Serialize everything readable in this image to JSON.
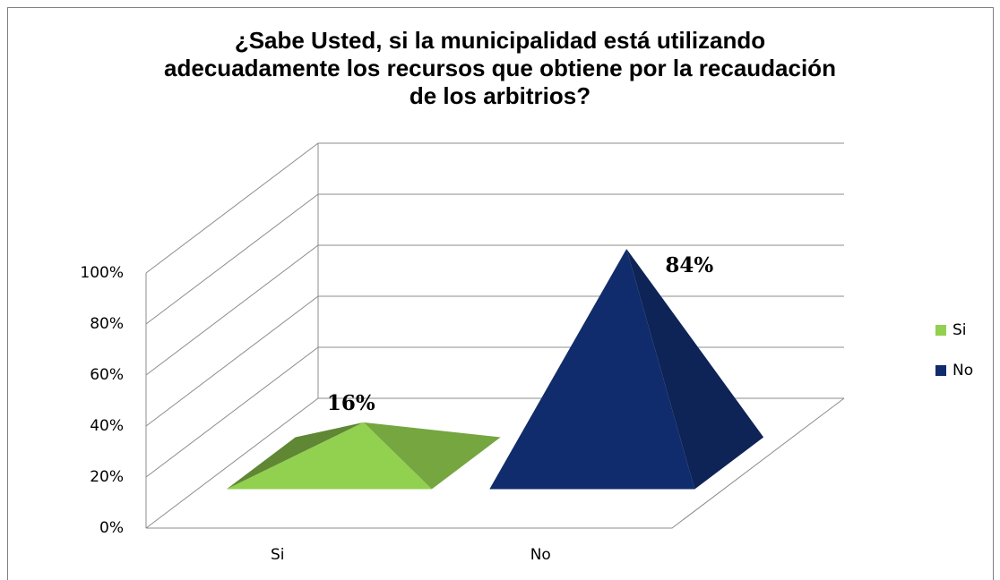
{
  "chart_data": {
    "type": "pyramid",
    "title": "¿Sabe Usted, si la municipalidad está utilizando\nadecuadamente los recursos que obtiene por la recaudación\nde los arbitrios?",
    "categories": [
      "Si",
      "No"
    ],
    "values": [
      16,
      84
    ],
    "value_labels": [
      "16%",
      "84%"
    ],
    "colors": [
      "#92d050",
      "#112c6c"
    ],
    "ylim": [
      0,
      100
    ],
    "yticks": [
      {
        "value": 0,
        "label": "0%"
      },
      {
        "value": 20,
        "label": "20%"
      },
      {
        "value": 40,
        "label": "40%"
      },
      {
        "value": 60,
        "label": "60%"
      },
      {
        "value": 80,
        "label": "80%"
      },
      {
        "value": 100,
        "label": "100%"
      }
    ],
    "grid": true,
    "legend": "right"
  }
}
